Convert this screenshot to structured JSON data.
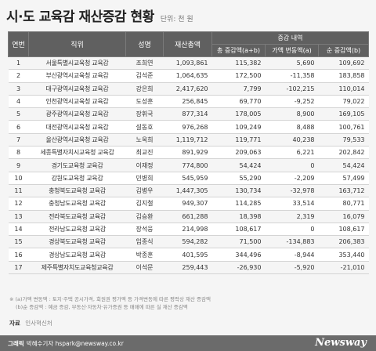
{
  "title": "시·도 교육감 재산증감 현황",
  "unit": "단위: 천 원",
  "headers": {
    "no": "연번",
    "position": "직위",
    "name": "성명",
    "total": "재산총액",
    "change_group": "증감 내역",
    "total_change": "총 증감액(a+b)",
    "value_change": "가액 변동액(a)",
    "net_change": "순 증감액(b)"
  },
  "rows": [
    {
      "no": "1",
      "position": "서울특별시교육청 교육감",
      "name": "조희연",
      "total": "1,093,861",
      "tc": "115,382",
      "vc": "5,690",
      "nc": "109,692"
    },
    {
      "no": "2",
      "position": "부산광역시교육청 교육감",
      "name": "김석준",
      "total": "1,064,635",
      "tc": "172,500",
      "vc": "-11,358",
      "nc": "183,858"
    },
    {
      "no": "3",
      "position": "대구광역시교육청 교육감",
      "name": "강은희",
      "total": "2,417,620",
      "tc": "7,799",
      "vc": "-102,215",
      "nc": "110,014"
    },
    {
      "no": "4",
      "position": "인천광역시교육청 교육감",
      "name": "도성훈",
      "total": "256,845",
      "tc": "69,770",
      "vc": "-9,252",
      "nc": "79,022"
    },
    {
      "no": "5",
      "position": "광주광역시교육청 교육감",
      "name": "장휘국",
      "total": "877,314",
      "tc": "178,005",
      "vc": "8,900",
      "nc": "169,105"
    },
    {
      "no": "6",
      "position": "대전광역시교육청 교육감",
      "name": "설동호",
      "total": "976,268",
      "tc": "109,249",
      "vc": "8,488",
      "nc": "100,761"
    },
    {
      "no": "7",
      "position": "울산광역시교육청 교육감",
      "name": "노옥희",
      "total": "1,119,712",
      "tc": "119,771",
      "vc": "40,238",
      "nc": "79,533"
    },
    {
      "no": "8",
      "position": "세종특별자치시교육청 교육감",
      "name": "최교진",
      "total": "891,929",
      "tc": "209,063",
      "vc": "6,221",
      "nc": "202,842"
    },
    {
      "no": "9",
      "position": "경기도교육청 교육감",
      "name": "이재정",
      "total": "774,800",
      "tc": "54,424",
      "vc": "0",
      "nc": "54,424"
    },
    {
      "no": "10",
      "position": "강원도교육청 교육감",
      "name": "민병희",
      "total": "545,959",
      "tc": "55,290",
      "vc": "-2,209",
      "nc": "57,499"
    },
    {
      "no": "11",
      "position": "충청북도교육청 교육감",
      "name": "김병우",
      "total": "1,447,305",
      "tc": "130,734",
      "vc": "-32,978",
      "nc": "163,712"
    },
    {
      "no": "12",
      "position": "충청남도교육청 교육감",
      "name": "김지철",
      "total": "949,307",
      "tc": "114,285",
      "vc": "33,514",
      "nc": "80,771"
    },
    {
      "no": "13",
      "position": "전라북도교육청 교육감",
      "name": "김승환",
      "total": "661,288",
      "tc": "18,398",
      "vc": "2,319",
      "nc": "16,079"
    },
    {
      "no": "14",
      "position": "전라남도교육청 교육감",
      "name": "장석웅",
      "total": "214,998",
      "tc": "108,617",
      "vc": "0",
      "nc": "108,617"
    },
    {
      "no": "15",
      "position": "경상북도교육청 교육감",
      "name": "임종식",
      "total": "594,282",
      "tc": "71,500",
      "vc": "-134,883",
      "nc": "206,383"
    },
    {
      "no": "16",
      "position": "경상남도교육청 교육감",
      "name": "박종훈",
      "total": "401,595",
      "tc": "344,496",
      "vc": "-8,944",
      "nc": "353,440"
    },
    {
      "no": "17",
      "position": "제주특별자치도교육청교육감",
      "name": "이석문",
      "total": "259,443",
      "tc": "-26,930",
      "vc": "-5,920",
      "nc": "-21,010"
    }
  ],
  "notes": [
    "※ (a)가액 변동액 : 토지·주택 공시가격, 회원권 평가액 등 가격변동에 따른 평락상 재산 증감액",
    "(b)순 증감액 : 예금 증감, 부동산·자동차·유가증권 등 매매에 따른 실 재산 증감액"
  ],
  "source": {
    "label": "자료",
    "text": "인사혁신처"
  },
  "footer": {
    "label": "그래픽",
    "text": "박혜수기자 hspark@newsway.co.kr",
    "logo": "Newsway"
  }
}
